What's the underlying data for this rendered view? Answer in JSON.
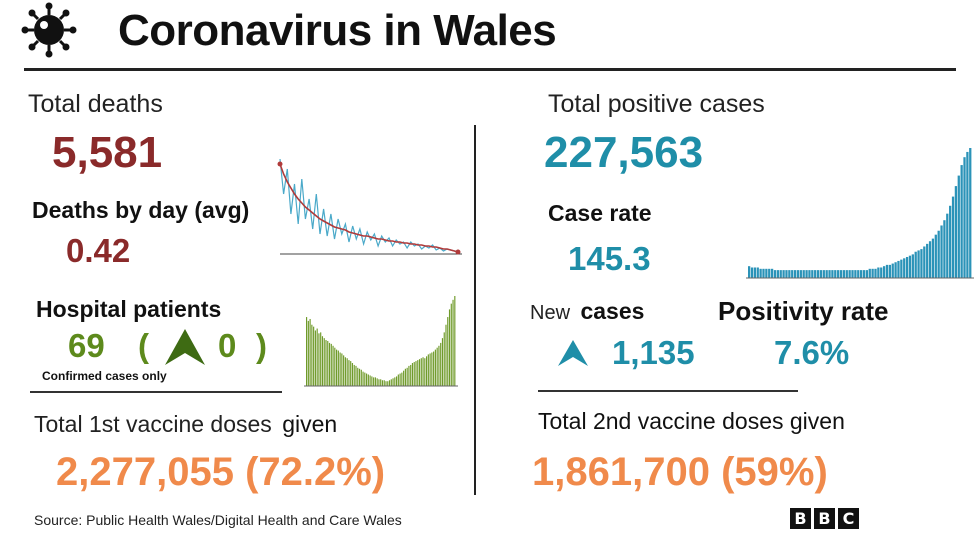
{
  "header": {
    "title": "Coronavirus in Wales",
    "icon": "virus-icon"
  },
  "deaths": {
    "label": "Total deaths",
    "total": "5,581",
    "by_day_label": "Deaths by day (avg)",
    "by_day_value": "0.42"
  },
  "hospital": {
    "label": "Hospital patients",
    "value": "69",
    "paren_open": "(",
    "change": "0",
    "paren_close": ")",
    "note": "Confirmed cases only"
  },
  "cases": {
    "label": "Total positive cases",
    "total": "227,563",
    "rate_label": "Case rate",
    "rate_value": "145.3",
    "new_label_1": "New",
    "new_label_2": "cases",
    "new_value": "1,135"
  },
  "positivity": {
    "label": "Positivity rate",
    "value": "7.6%"
  },
  "vaccine1": {
    "label_1": "Total 1st vaccine doses",
    "label_2": "given",
    "value": "2,277,055 (72.2%)"
  },
  "vaccine2": {
    "label": "Total 2nd vaccine doses given",
    "value": "1,861,700 (59%)"
  },
  "footer": {
    "source": "Source: Public Health Wales/Digital Health and Care Wales",
    "logo": [
      "B",
      "B",
      "C"
    ]
  },
  "colors": {
    "deaths": "#8a2a2a",
    "cases": "#1f8ea8",
    "hospital": "#5d8a1c",
    "vaccine": "#f08a4b"
  },
  "chart_data": [
    {
      "type": "line",
      "name": "deaths-by-day",
      "series": [
        {
          "values": [
            95,
            60,
            85,
            40,
            70,
            30,
            75,
            35,
            55,
            25,
            60,
            20,
            45,
            18,
            40,
            15,
            35,
            20,
            30,
            12,
            28,
            15,
            25,
            10,
            22,
            14,
            20,
            8,
            18,
            12,
            16,
            8,
            14,
            10,
            12,
            6,
            12,
            8,
            10,
            5,
            8,
            6,
            9,
            4,
            6,
            3,
            5,
            4,
            3,
            2
          ]
        },
        {
          "values": [
            90,
            80,
            72,
            66,
            60,
            55,
            51,
            47,
            44,
            41,
            38,
            35,
            33,
            31,
            29,
            27,
            26,
            25,
            24,
            22,
            21,
            20,
            19,
            18,
            18,
            17,
            16,
            15,
            15,
            14,
            13,
            13,
            12,
            12,
            11,
            11,
            10,
            10,
            9,
            9,
            8,
            8,
            7,
            7,
            6,
            5,
            5,
            4,
            3,
            2
          ]
        }
      ]
    },
    {
      "type": "bar",
      "name": "hospital-patients",
      "values": [
        72,
        68,
        70,
        64,
        62,
        58,
        60,
        55,
        56,
        52,
        50,
        48,
        47,
        45,
        44,
        42,
        40,
        38,
        37,
        35,
        34,
        32,
        30,
        29,
        27,
        26,
        24,
        22,
        21,
        19,
        18,
        17,
        15,
        14,
        13,
        12,
        11,
        10,
        9,
        9,
        8,
        7,
        7,
        6,
        6,
        5,
        5,
        6,
        7,
        8,
        9,
        10,
        12,
        13,
        14,
        16,
        18,
        19,
        21,
        22,
        24,
        25,
        26,
        27,
        28,
        29,
        30,
        29,
        31,
        33,
        34,
        35,
        36,
        38,
        40,
        42,
        45,
        50,
        56,
        64,
        72,
        80,
        86,
        90,
        94
      ]
    },
    {
      "type": "bar",
      "name": "positive-cases",
      "values": [
        9,
        8,
        8,
        8,
        7,
        7,
        7,
        7,
        7,
        6,
        6,
        6,
        6,
        6,
        6,
        6,
        6,
        6,
        6,
        6,
        6,
        6,
        6,
        6,
        6,
        6,
        6,
        6,
        6,
        6,
        6,
        6,
        6,
        6,
        6,
        6,
        6,
        6,
        6,
        6,
        6,
        6,
        7,
        7,
        7,
        8,
        8,
        9,
        10,
        10,
        11,
        12,
        13,
        14,
        15,
        16,
        17,
        18,
        20,
        21,
        22,
        24,
        26,
        28,
        30,
        33,
        36,
        40,
        44,
        49,
        55,
        62,
        70,
        78,
        86,
        92,
        96,
        99
      ]
    }
  ]
}
